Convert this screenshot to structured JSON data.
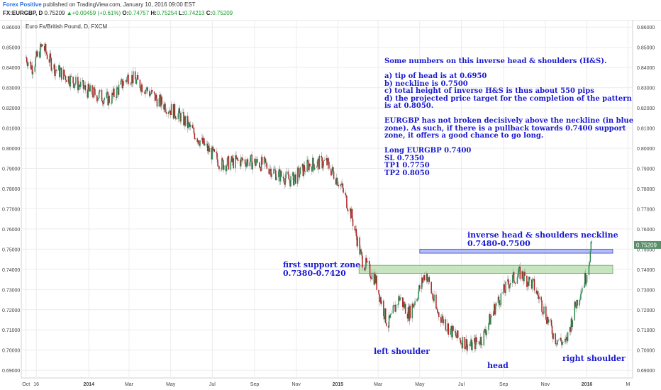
{
  "header": {
    "author": "Forex Positive",
    "published": " published on TradingView.com, January 10, 2016 09:00 EST",
    "symbol": "FX:EURGBP, D",
    "last": "0.75209",
    "change": "+0.00459 (+0.61%)",
    "open_label": "O:",
    "open": "0.74757",
    "high_label": "H:",
    "high": "0.75254",
    "low_label": "L:",
    "low": "0.74213",
    "close_label": "C:",
    "close": "0.75209"
  },
  "colors": {
    "up_candle": "#2e8b57",
    "down_candle": "#b22222",
    "neckline_zone": "#9aa6f5",
    "support_zone": "#b9e0b0",
    "annotation_text": "#1b1bd0",
    "price_tag": "#5a8f6a"
  },
  "chart_data": {
    "type": "candlestick",
    "title": "Euro Fx/British Pound, D, FXCM",
    "x_tick_labels": [
      "Oct",
      "16",
      "2014",
      "Mar",
      "May",
      "Jul",
      "Sep",
      "Nov",
      "2015",
      "Mar",
      "May",
      "Jul",
      "Sep",
      "Nov",
      "2016",
      "M"
    ],
    "y_tick_labels": [
      "0.86000",
      "0.85000",
      "0.84000",
      "0.83000",
      "0.82000",
      "0.81000",
      "0.80000",
      "0.79000",
      "0.78000",
      "0.77000",
      "0.76000",
      "0.75000",
      "0.74000",
      "0.73000",
      "0.72000",
      "0.71000",
      "0.70000",
      "0.69000"
    ],
    "y_range": [
      0.6862,
      0.8636
    ],
    "grid": true,
    "price_tag": "0.75209",
    "price_tag_value": 0.75209,
    "approx_close_path": [
      {
        "t": "2013-10-01",
        "p": 0.845
      },
      {
        "t": "2013-10-10",
        "p": 0.84
      },
      {
        "t": "2013-10-25",
        "p": 0.851
      },
      {
        "t": "2013-11-10",
        "p": 0.84
      },
      {
        "t": "2013-12-01",
        "p": 0.835
      },
      {
        "t": "2014-01-01",
        "p": 0.828
      },
      {
        "t": "2014-02-01",
        "p": 0.824
      },
      {
        "t": "2014-03-01",
        "p": 0.836
      },
      {
        "t": "2014-03-20",
        "p": 0.831
      },
      {
        "t": "2014-04-15",
        "p": 0.823
      },
      {
        "t": "2014-05-15",
        "p": 0.816
      },
      {
        "t": "2014-06-15",
        "p": 0.803
      },
      {
        "t": "2014-07-15",
        "p": 0.792
      },
      {
        "t": "2014-08-15",
        "p": 0.794
      },
      {
        "t": "2014-09-15",
        "p": 0.792
      },
      {
        "t": "2014-10-05",
        "p": 0.787
      },
      {
        "t": "2014-10-25",
        "p": 0.784
      },
      {
        "t": "2014-11-20",
        "p": 0.792
      },
      {
        "t": "2014-12-15",
        "p": 0.793
      },
      {
        "t": "2015-01-05",
        "p": 0.782
      },
      {
        "t": "2015-01-20",
        "p": 0.768
      },
      {
        "t": "2015-02-05",
        "p": 0.745
      },
      {
        "t": "2015-02-25",
        "p": 0.735
      },
      {
        "t": "2015-03-15",
        "p": 0.712
      },
      {
        "t": "2015-04-01",
        "p": 0.726
      },
      {
        "t": "2015-04-15",
        "p": 0.718
      },
      {
        "t": "2015-04-28",
        "p": 0.728
      },
      {
        "t": "2015-05-10",
        "p": 0.739
      },
      {
        "t": "2015-05-25",
        "p": 0.72
      },
      {
        "t": "2015-06-10",
        "p": 0.712
      },
      {
        "t": "2015-06-25",
        "p": 0.706
      },
      {
        "t": "2015-07-15",
        "p": 0.702
      },
      {
        "t": "2015-08-01",
        "p": 0.706
      },
      {
        "t": "2015-08-20",
        "p": 0.722
      },
      {
        "t": "2015-09-10",
        "p": 0.734
      },
      {
        "t": "2015-09-25",
        "p": 0.738
      },
      {
        "t": "2015-10-15",
        "p": 0.732
      },
      {
        "t": "2015-10-30",
        "p": 0.72
      },
      {
        "t": "2015-11-15",
        "p": 0.706
      },
      {
        "t": "2015-12-01",
        "p": 0.703
      },
      {
        "t": "2015-12-15",
        "p": 0.722
      },
      {
        "t": "2015-12-31",
        "p": 0.737
      },
      {
        "t": "2016-01-08",
        "p": 0.752
      }
    ],
    "zones": [
      {
        "name": "inverse head & shoulders neckline",
        "low": 0.748,
        "high": 0.75
      },
      {
        "name": "first support zone",
        "low": 0.738,
        "high": 0.742
      }
    ]
  },
  "annotations": {
    "notes": [
      "Some numbers on this inverse head & shoulders (H&S).",
      "",
      "a) tip of head is at 0.6950",
      "b) neckline is 0.7500",
      "c) total height of inverse H&S is thus about 550 pips",
      "d) the projected price target for the completion of the pattern",
      "is at 0.8050.",
      "",
      "EURGBP has not broken decisively above the neckline (in blue",
      "zone). As such, if there is a pullback towards 0.7400 support",
      "zone, it offers a good chance to go long.",
      "",
      "Long EURGBP 0.7400",
      "SL 0.7350",
      "TP1 0.7750",
      "TP2 0.8050"
    ],
    "neckline_label_1": "inverse head & shoulders neckline",
    "neckline_label_2": "0.7480-0.7500",
    "support_label_1": "first support zone",
    "support_label_2": "0.7380-0.7420",
    "left_shoulder": "left shoulder",
    "head": "head",
    "right_shoulder": "right shoulder"
  }
}
